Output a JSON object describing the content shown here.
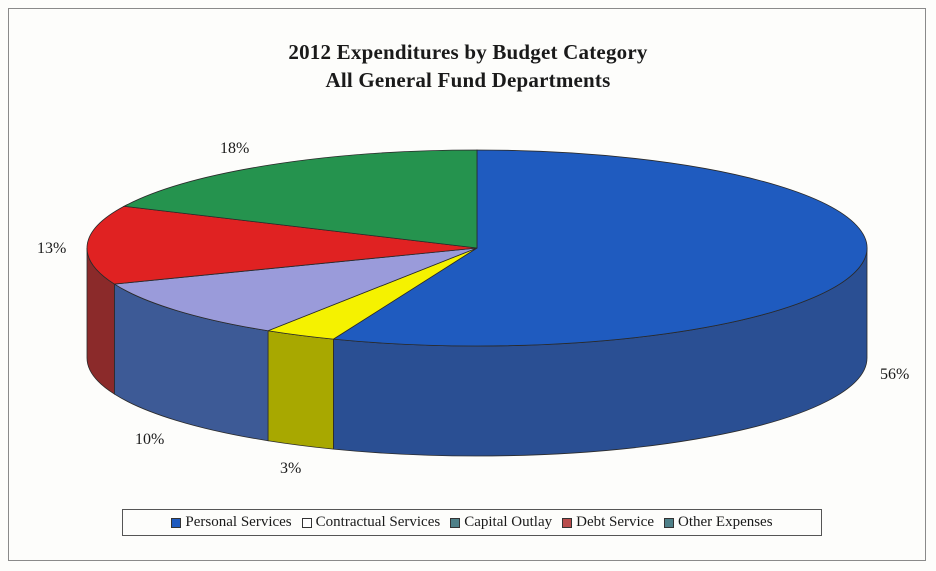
{
  "chart_data": {
    "type": "pie",
    "title": "2012 Expenditures by Budget Category",
    "subtitle": "All General Fund Departments",
    "slices": [
      {
        "name": "Personal Services",
        "value": 56,
        "label": "56%",
        "color": "#1f5bbf",
        "side": "#2a4f93",
        "legend_color": "#1f5bbf"
      },
      {
        "name": "Contractual Services",
        "value": 3,
        "label": "3%",
        "color": "#f5f200",
        "side": "#a8a800",
        "legend_color": "#ffffff"
      },
      {
        "name": "Capital Outlay",
        "value": 10,
        "label": "10%",
        "color": "#9a9bda",
        "side": "#3d5a96",
        "legend_color": "#4e8088"
      },
      {
        "name": "Debt Service",
        "value": 13,
        "label": "13%",
        "color": "#e02222",
        "side": "#8b2a2a",
        "legend_color": "#b84c4c"
      },
      {
        "name": "Other Expenses",
        "value": 18,
        "label": "18%",
        "color": "#25934e",
        "side": "#1e6b3a",
        "legend_color": "#4e8088"
      }
    ],
    "legend_position": "bottom"
  }
}
